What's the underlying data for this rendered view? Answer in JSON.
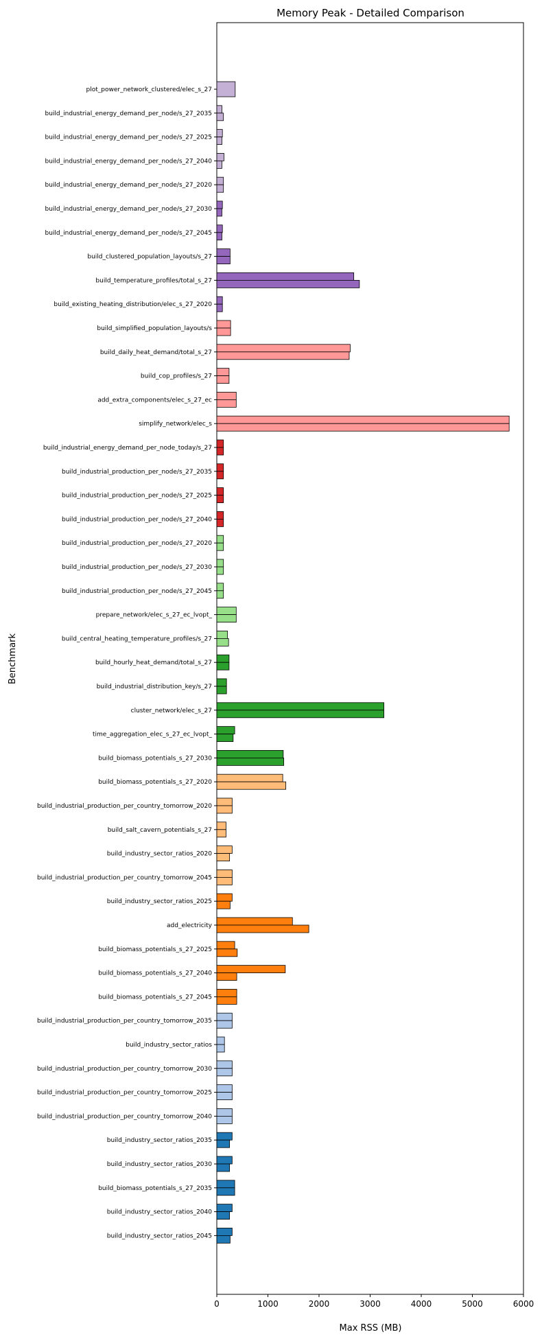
{
  "chart_data": {
    "type": "bar",
    "orientation": "horizontal",
    "title": "Memory Peak - Detailed Comparison",
    "xlabel": "Max RSS (MB)",
    "ylabel": "Benchmark",
    "xlim": [
      0,
      6000
    ],
    "xticks": [
      "0",
      "1000",
      "2000",
      "3000",
      "4000",
      "5000",
      "6000"
    ],
    "grid": false,
    "legend": "none",
    "bar_edge_color": "#000000",
    "categories": [
      {
        "label": "plot_power_network_clustered/elec_s_27",
        "values": [
          360,
          null
        ],
        "color": "#c5b0d5"
      },
      {
        "label": "build_industrial_energy_demand_per_node/s_27_2035",
        "values": [
          100,
          130
        ],
        "color": "#c5b0d5"
      },
      {
        "label": "build_industrial_energy_demand_per_node/s_27_2025",
        "values": [
          110,
          100
        ],
        "color": "#c5b0d5"
      },
      {
        "label": "build_industrial_energy_demand_per_node/s_27_2040",
        "values": [
          140,
          100
        ],
        "color": "#c5b0d5"
      },
      {
        "label": "build_industrial_energy_demand_per_node/s_27_2020",
        "values": [
          130,
          130
        ],
        "color": "#c5b0d5"
      },
      {
        "label": "build_industrial_energy_demand_per_node/s_27_2030",
        "values": [
          110,
          100
        ],
        "color": "#9467bd"
      },
      {
        "label": "build_industrial_energy_demand_per_node/s_27_2045",
        "values": [
          110,
          100
        ],
        "color": "#9467bd"
      },
      {
        "label": "build_clustered_population_layouts/s_27",
        "values": [
          260,
          260
        ],
        "color": "#9467bd"
      },
      {
        "label": "build_temperature_profiles/total_s_27",
        "values": [
          2680,
          2790
        ],
        "color": "#9467bd"
      },
      {
        "label": "build_existing_heating_distribution/elec_s_27_2020",
        "values": [
          110,
          110
        ],
        "color": "#9467bd"
      },
      {
        "label": "build_simplified_population_layouts/s",
        "values": [
          270,
          270
        ],
        "color": "#ff9896"
      },
      {
        "label": "build_daily_heat_demand/total_s_27",
        "values": [
          2610,
          2590
        ],
        "color": "#ff9896"
      },
      {
        "label": "build_cop_profiles/s_27",
        "values": [
          240,
          240
        ],
        "color": "#ff9896"
      },
      {
        "label": "add_extra_components/elec_s_27_ec",
        "values": [
          380,
          380
        ],
        "color": "#ff9896"
      },
      {
        "label": "simplify_network/elec_s",
        "values": [
          5720,
          5720
        ],
        "color": "#ff9896"
      },
      {
        "label": "build_industrial_energy_demand_per_node_today/s_27",
        "values": [
          130,
          130
        ],
        "color": "#d62728"
      },
      {
        "label": "build_industrial_production_per_node/s_27_2035",
        "values": [
          130,
          130
        ],
        "color": "#d62728"
      },
      {
        "label": "build_industrial_production_per_node/s_27_2025",
        "values": [
          130,
          130
        ],
        "color": "#d62728"
      },
      {
        "label": "build_industrial_production_per_node/s_27_2040",
        "values": [
          130,
          130
        ],
        "color": "#d62728"
      },
      {
        "label": "build_industrial_production_per_node/s_27_2020",
        "values": [
          130,
          130
        ],
        "color": "#98df8a"
      },
      {
        "label": "build_industrial_production_per_node/s_27_2030",
        "values": [
          130,
          130
        ],
        "color": "#98df8a"
      },
      {
        "label": "build_industrial_production_per_node/s_27_2045",
        "values": [
          130,
          130
        ],
        "color": "#98df8a"
      },
      {
        "label": "prepare_network/elec_s_27_ec_lvopt_",
        "values": [
          380,
          380
        ],
        "color": "#98df8a"
      },
      {
        "label": "build_central_heating_temperature_profiles/s_27",
        "values": [
          210,
          230
        ],
        "color": "#98df8a"
      },
      {
        "label": "build_hourly_heat_demand/total_s_27",
        "values": [
          240,
          240
        ],
        "color": "#2ca02c"
      },
      {
        "label": "build_industrial_distribution_key/s_27",
        "values": [
          190,
          190
        ],
        "color": "#2ca02c"
      },
      {
        "label": "cluster_network/elec_s_27",
        "values": [
          3270,
          3270
        ],
        "color": "#2ca02c"
      },
      {
        "label": "time_aggregation_elec_s_27_ec_lvopt_",
        "values": [
          350,
          320
        ],
        "color": "#2ca02c"
      },
      {
        "label": "build_biomass_potentials_s_27_2030",
        "values": [
          1300,
          1310
        ],
        "color": "#2ca02c"
      },
      {
        "label": "build_biomass_potentials_s_27_2020",
        "values": [
          1290,
          1350
        ],
        "color": "#ffbb78"
      },
      {
        "label": "build_industrial_production_per_country_tomorrow_2020",
        "values": [
          300,
          300
        ],
        "color": "#ffbb78"
      },
      {
        "label": "build_salt_cavern_potentials_s_27",
        "values": [
          180,
          180
        ],
        "color": "#ffbb78"
      },
      {
        "label": "build_industry_sector_ratios_2020",
        "values": [
          300,
          250
        ],
        "color": "#ffbb78"
      },
      {
        "label": "build_industrial_production_per_country_tomorrow_2045",
        "values": [
          300,
          300
        ],
        "color": "#ffbb78"
      },
      {
        "label": "build_industry_sector_ratios_2025",
        "values": [
          300,
          260
        ],
        "color": "#ff7f0e"
      },
      {
        "label": "add_electricity",
        "values": [
          1480,
          1800
        ],
        "color": "#ff7f0e"
      },
      {
        "label": "build_biomass_potentials_s_27_2025",
        "values": [
          350,
          400
        ],
        "color": "#ff7f0e"
      },
      {
        "label": "build_biomass_potentials_s_27_2040",
        "values": [
          1340,
          390
        ],
        "color": "#ff7f0e"
      },
      {
        "label": "build_biomass_potentials_s_27_2045",
        "values": [
          390,
          390
        ],
        "color": "#ff7f0e"
      },
      {
        "label": "build_industrial_production_per_country_tomorrow_2035",
        "values": [
          300,
          300
        ],
        "color": "#aec7e8"
      },
      {
        "label": "build_industry_sector_ratios",
        "values": [
          150,
          150
        ],
        "color": "#aec7e8"
      },
      {
        "label": "build_industrial_production_per_country_tomorrow_2030",
        "values": [
          300,
          300
        ],
        "color": "#aec7e8"
      },
      {
        "label": "build_industrial_production_per_country_tomorrow_2025",
        "values": [
          300,
          300
        ],
        "color": "#aec7e8"
      },
      {
        "label": "build_industrial_production_per_country_tomorrow_2040",
        "values": [
          300,
          300
        ],
        "color": "#aec7e8"
      },
      {
        "label": "build_industry_sector_ratios_2035",
        "values": [
          300,
          250
        ],
        "color": "#1f77b4"
      },
      {
        "label": "build_industry_sector_ratios_2030",
        "values": [
          300,
          250
        ],
        "color": "#1f77b4"
      },
      {
        "label": "build_biomass_potentials_s_27_2035",
        "values": [
          350,
          350
        ],
        "color": "#1f77b4"
      },
      {
        "label": "build_industry_sector_ratios_2040",
        "values": [
          300,
          250
        ],
        "color": "#1f77b4"
      },
      {
        "label": "build_industry_sector_ratios_2045",
        "values": [
          300,
          260
        ],
        "color": "#1f77b4"
      }
    ]
  }
}
